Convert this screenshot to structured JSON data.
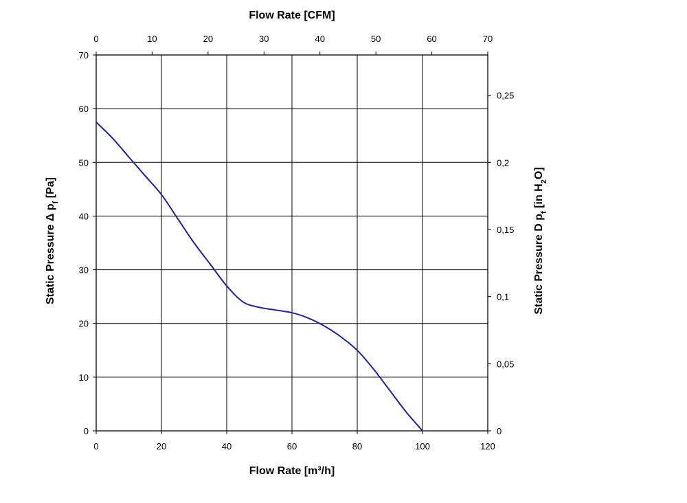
{
  "chart_data": {
    "type": "line",
    "title": "",
    "x_bottom": {
      "label": "Flow Rate [m³/h]",
      "range": [
        0,
        120
      ],
      "ticks": [
        0,
        20,
        40,
        60,
        80,
        100,
        120
      ],
      "tick_labels": [
        "0",
        "20",
        "40",
        "60",
        "80",
        "100",
        "120"
      ]
    },
    "x_top": {
      "label": "Flow Rate [CFM]",
      "range": [
        0,
        70
      ],
      "ticks": [
        0,
        10,
        20,
        30,
        40,
        50,
        60,
        70
      ],
      "tick_labels": [
        "0",
        "10",
        "20",
        "30",
        "40",
        "50",
        "60",
        "70"
      ]
    },
    "y_left": {
      "label_parts": [
        "Static Pressure Δ p",
        "f",
        " [Pa]"
      ],
      "range": [
        0,
        70
      ],
      "ticks": [
        0,
        10,
        20,
        30,
        40,
        50,
        60,
        70
      ],
      "tick_labels": [
        "0",
        "10",
        "20",
        "30",
        "40",
        "50",
        "60",
        "70"
      ]
    },
    "y_right": {
      "label_parts": [
        "Static Pressure D p",
        "f",
        " [in H",
        "2",
        "O]"
      ],
      "range": [
        0,
        0.28
      ],
      "ticks": [
        0,
        0.05,
        0.1,
        0.15,
        0.2,
        0.25
      ],
      "tick_labels": [
        "0",
        "0,05",
        "0,1",
        "0,15",
        "0,2",
        "0,25"
      ]
    },
    "grid": true,
    "series": [
      {
        "color": "#1f1fa8",
        "x": [
          0,
          5,
          10,
          15,
          20,
          25,
          30,
          35,
          40,
          45,
          50,
          55,
          60,
          65,
          70,
          75,
          80,
          85,
          90,
          95,
          100
        ],
        "y": [
          57.5,
          54.5,
          51.0,
          47.5,
          44.0,
          39.5,
          35.0,
          31.0,
          27.0,
          24.0,
          23.0,
          22.5,
          22.0,
          21.0,
          19.5,
          17.5,
          15.0,
          11.5,
          7.5,
          3.5,
          0
        ]
      }
    ]
  }
}
